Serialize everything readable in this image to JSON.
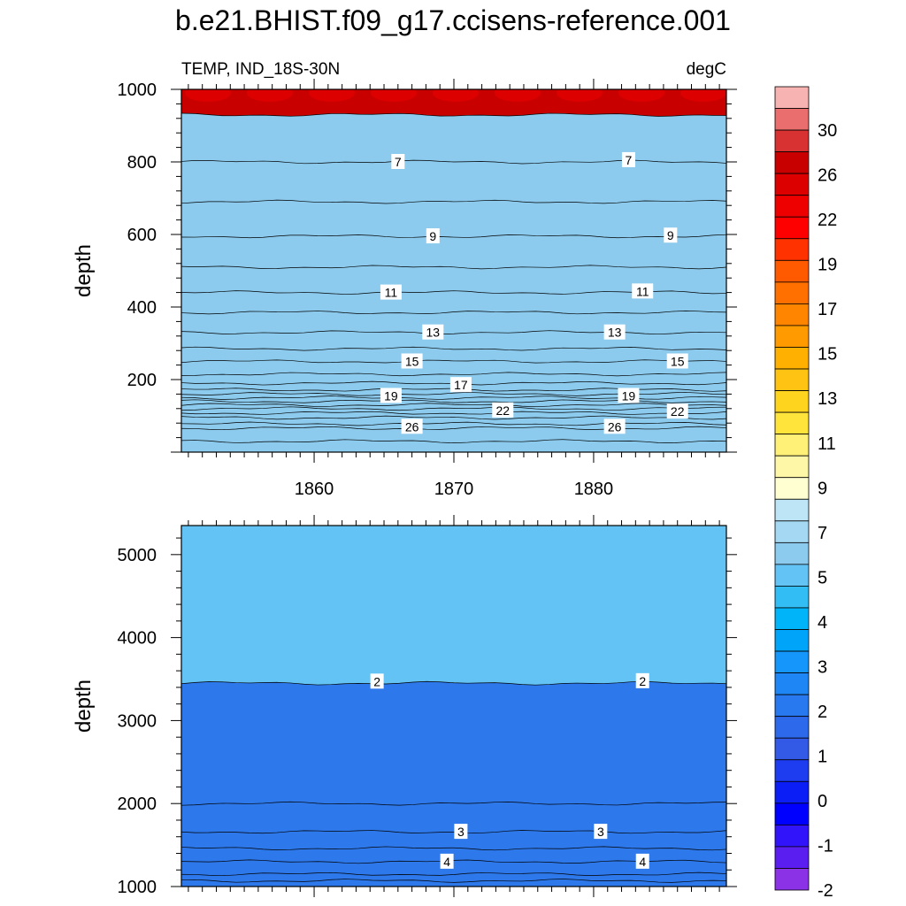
{
  "title": "b.e21.BHIST.f09_g17.ccisens-reference.001",
  "left_string": "TEMP, IND_18S-30N",
  "right_string": "degC",
  "colors": {
    "frame": "#000000",
    "contour_line": "#000000",
    "label_bg": "#ffffff"
  },
  "chart_data": [
    {
      "type": "heatmap",
      "panel": "upper",
      "xlabel": "",
      "ylabel": "depth",
      "xlim": [
        1850.5,
        1889.5
      ],
      "ylim": [
        1000,
        0
      ],
      "xticks": [
        1860,
        1870,
        1880
      ],
      "yticks": [
        200,
        400,
        600,
        800,
        1000
      ],
      "isotherm_depths": [
        {
          "level": 28,
          "depth": 30
        },
        {
          "level": 27,
          "depth": 66
        },
        {
          "level": 26,
          "depth": 78
        },
        {
          "level": 25,
          "depth": 95
        },
        {
          "level": 24,
          "depth": 108
        },
        {
          "level": 23,
          "depth": 120
        },
        {
          "level": 22,
          "depth": 130
        },
        {
          "level": 21,
          "depth": 140
        },
        {
          "level": 20,
          "depth": 150
        },
        {
          "level": 19,
          "depth": 160
        },
        {
          "level": 18,
          "depth": 172
        },
        {
          "level": 17,
          "depth": 190
        },
        {
          "level": 16,
          "depth": 215
        },
        {
          "level": 15,
          "depth": 250
        },
        {
          "level": 14,
          "depth": 285
        },
        {
          "level": 13,
          "depth": 330
        },
        {
          "level": 12,
          "depth": 385
        },
        {
          "level": 11,
          "depth": 440
        },
        {
          "level": 10,
          "depth": 510
        },
        {
          "level": 9,
          "depth": 595
        },
        {
          "level": 8,
          "depth": 690
        },
        {
          "level": 7,
          "depth": 800
        },
        {
          "level": 6,
          "depth": 930
        }
      ],
      "contour_labels": [
        {
          "text": "26",
          "x": 1867.0,
          "depth": 70
        },
        {
          "text": "26",
          "x": 1881.5,
          "depth": 70
        },
        {
          "text": "22",
          "x": 1873.5,
          "depth": 115
        },
        {
          "text": "22",
          "x": 1886.0,
          "depth": 112
        },
        {
          "text": "19",
          "x": 1865.5,
          "depth": 155
        },
        {
          "text": "19",
          "x": 1882.5,
          "depth": 155
        },
        {
          "text": "17",
          "x": 1870.5,
          "depth": 185
        },
        {
          "text": "15",
          "x": 1867.0,
          "depth": 250
        },
        {
          "text": "15",
          "x": 1886.0,
          "depth": 250
        },
        {
          "text": "13",
          "x": 1868.5,
          "depth": 330
        },
        {
          "text": "13",
          "x": 1881.5,
          "depth": 330
        },
        {
          "text": "11",
          "x": 1865.5,
          "depth": 440
        },
        {
          "text": "11",
          "x": 1883.5,
          "depth": 443
        },
        {
          "text": "9",
          "x": 1868.5,
          "depth": 595
        },
        {
          "text": "9",
          "x": 1885.5,
          "depth": 597
        },
        {
          "text": "7",
          "x": 1866.0,
          "depth": 800
        },
        {
          "text": "7",
          "x": 1882.5,
          "depth": 805
        }
      ]
    },
    {
      "type": "heatmap",
      "panel": "lower",
      "xlabel": "",
      "ylabel": "depth",
      "xlim": [
        1850.5,
        1889.5
      ],
      "ylim": [
        5350,
        1000
      ],
      "xticks": [
        1860,
        1870,
        1880
      ],
      "yticks": [
        1000,
        2000,
        3000,
        4000,
        5000
      ],
      "isotherm_depths": [
        {
          "level": 5,
          "depth": 1070
        },
        {
          "level": 4.5,
          "depth": 1150
        },
        {
          "level": 4,
          "depth": 1300
        },
        {
          "level": 3.5,
          "depth": 1460
        },
        {
          "level": 3,
          "depth": 1660
        },
        {
          "level": 2.5,
          "depth": 2000
        },
        {
          "level": 2,
          "depth": 3450
        }
      ],
      "contour_labels": [
        {
          "text": "4",
          "x": 1869.5,
          "depth": 1300
        },
        {
          "text": "4",
          "x": 1883.5,
          "depth": 1300
        },
        {
          "text": "3",
          "x": 1870.5,
          "depth": 1660
        },
        {
          "text": "3",
          "x": 1880.5,
          "depth": 1660
        },
        {
          "text": "2",
          "x": 1864.5,
          "depth": 3470
        },
        {
          "text": "2",
          "x": 1883.5,
          "depth": 3475
        }
      ]
    }
  ],
  "colorbar": {
    "labels": [
      "30",
      "26",
      "22",
      "19",
      "17",
      "15",
      "13",
      "11",
      "9",
      "7",
      "5",
      "4",
      "3",
      "2",
      "1",
      "0",
      "-1",
      "-2"
    ],
    "colors_top_to_bottom": [
      "#F7B2B2",
      "#EB6E6E",
      "#D93232",
      "#C80000",
      "#DC0000",
      "#EE0000",
      "#FF0000",
      "#FF3200",
      "#FF5A00",
      "#FF7000",
      "#FF8500",
      "#FF9B00",
      "#FFB000",
      "#FFC314",
      "#FFD41E",
      "#FFE43C",
      "#FFF078",
      "#FFF7A8",
      "#FFFFD2",
      "#BEE5F5",
      "#A5D8F2",
      "#8CCBEE",
      "#64C3F5",
      "#32BEF5",
      "#00B4FA",
      "#00A5FA",
      "#1496FA",
      "#1E87F5",
      "#2878F0",
      "#2D69EB",
      "#325AE6",
      "#1E3CF0",
      "#0A1EF5",
      "#0000FF",
      "#3214FA",
      "#5A1EF0",
      "#8C32E6"
    ]
  },
  "level_colors": {
    "28": "#DC0000",
    "27": "#EE0000",
    "26": "#FF0000",
    "25": "#FF3200",
    "24": "#FF3200",
    "23": "#FF5A00",
    "22": "#FF5A00",
    "21": "#FF7000",
    "20": "#FF7000",
    "19": "#FF8500",
    "18": "#FF9B00",
    "17": "#FF9B00",
    "16": "#FFB000",
    "15": "#FFB000",
    "14": "#FFC314",
    "13": "#FFD41E",
    "12": "#FFE43C",
    "11": "#FFF078",
    "10": "#FFF7A8",
    "9": "#FFFFD2",
    "8": "#BEE5F5",
    "7": "#A5D8F2",
    "6": "#8CCBEE",
    "5": "#64C3F5",
    "4.5": "#32BEF5",
    "4": "#00B4FA",
    "3.5": "#00A5FA",
    "3": "#1496FA",
    "2.5": "#1E87F5",
    "2": "#2878F0",
    "surface": "#C80000",
    "deep": "#2D78EB"
  }
}
